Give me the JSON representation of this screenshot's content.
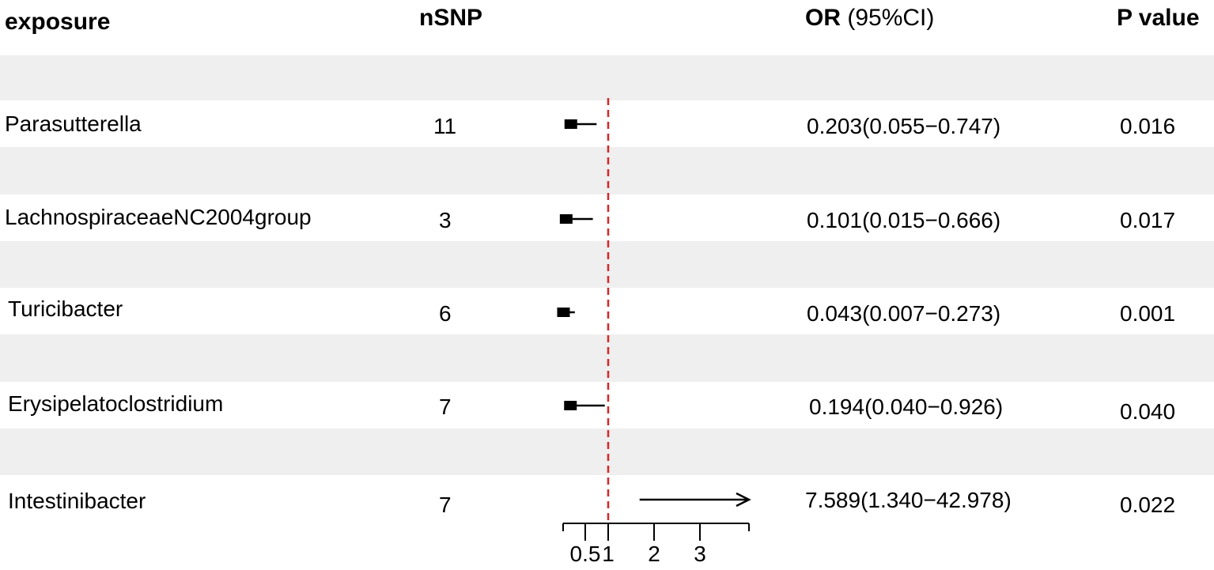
{
  "headers": {
    "exposure": "exposure",
    "nsnp": "nSNP",
    "or_bold": "OR",
    "or_rest": " (95%CI)",
    "pvalue": "P value"
  },
  "rows": [
    {
      "exposure": "Parasutterella",
      "nsnp": "11",
      "or_ci": "0.203(0.055−0.747)",
      "p": "0.016"
    },
    {
      "exposure": "LachnospiraceaeNC2004group",
      "nsnp": "3",
      "or_ci": "0.101(0.015−0.666)",
      "p": "0.017"
    },
    {
      "exposure": "Turicibacter",
      "nsnp": "6",
      "or_ci": "0.043(0.007−0.273)",
      "p": "0.001"
    },
    {
      "exposure": "Erysipelatoclostridium",
      "nsnp": "7",
      "or_ci": "0.194(0.040−0.926)",
      "p": "0.040"
    },
    {
      "exposure": "Intestinibacter",
      "nsnp": "7",
      "or_ci": "7.589(1.340−42.978)",
      "p": "0.022"
    }
  ],
  "colors": {
    "stripe": "#efefef",
    "reference_line": "#d62728",
    "mark": "#000000"
  },
  "chart_data": {
    "type": "forest",
    "reference_value": 1,
    "xlim": [
      0,
      3.3
    ],
    "xticks": [
      0.5,
      1,
      2,
      3
    ],
    "xtick_labels": [
      "0.5",
      "1",
      "2",
      "3"
    ],
    "series": [
      {
        "label": "Parasutterella",
        "estimate": 0.203,
        "lower": 0.055,
        "upper": 0.747,
        "truncated_upper": false
      },
      {
        "label": "LachnospiraceaeNC2004group",
        "estimate": 0.101,
        "lower": 0.015,
        "upper": 0.666,
        "truncated_upper": false
      },
      {
        "label": "Turicibacter",
        "estimate": 0.043,
        "lower": 0.007,
        "upper": 0.273,
        "truncated_upper": false
      },
      {
        "label": "Erysipelatoclostridium",
        "estimate": 0.194,
        "lower": 0.04,
        "upper": 0.926,
        "truncated_upper": false
      },
      {
        "label": "Intestinibacter",
        "estimate": 7.589,
        "lower": 1.34,
        "upper": 42.978,
        "truncated_upper": true
      }
    ]
  }
}
